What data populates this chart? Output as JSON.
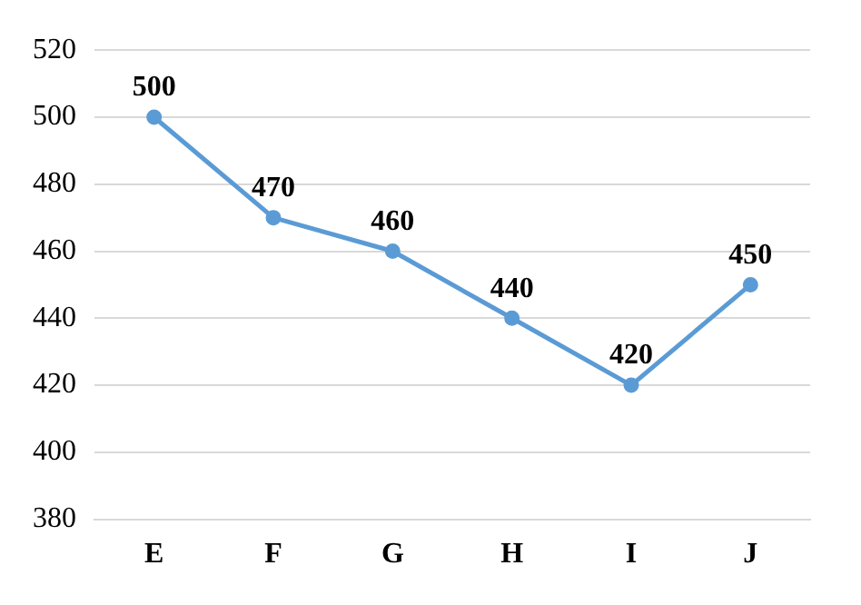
{
  "chart_data": {
    "type": "line",
    "categories": [
      "E",
      "F",
      "G",
      "H",
      "I",
      "J"
    ],
    "series": [
      {
        "color": "#5b9bd5",
        "values": [
          500,
          470,
          460,
          440,
          420,
          450
        ]
      }
    ],
    "ylim": [
      380,
      520
    ],
    "yticks": [
      380,
      400,
      420,
      440,
      460,
      480,
      500,
      520
    ],
    "grid": "y",
    "legend": false,
    "marker": "circle",
    "line_style": "solid",
    "data_labels": true
  }
}
